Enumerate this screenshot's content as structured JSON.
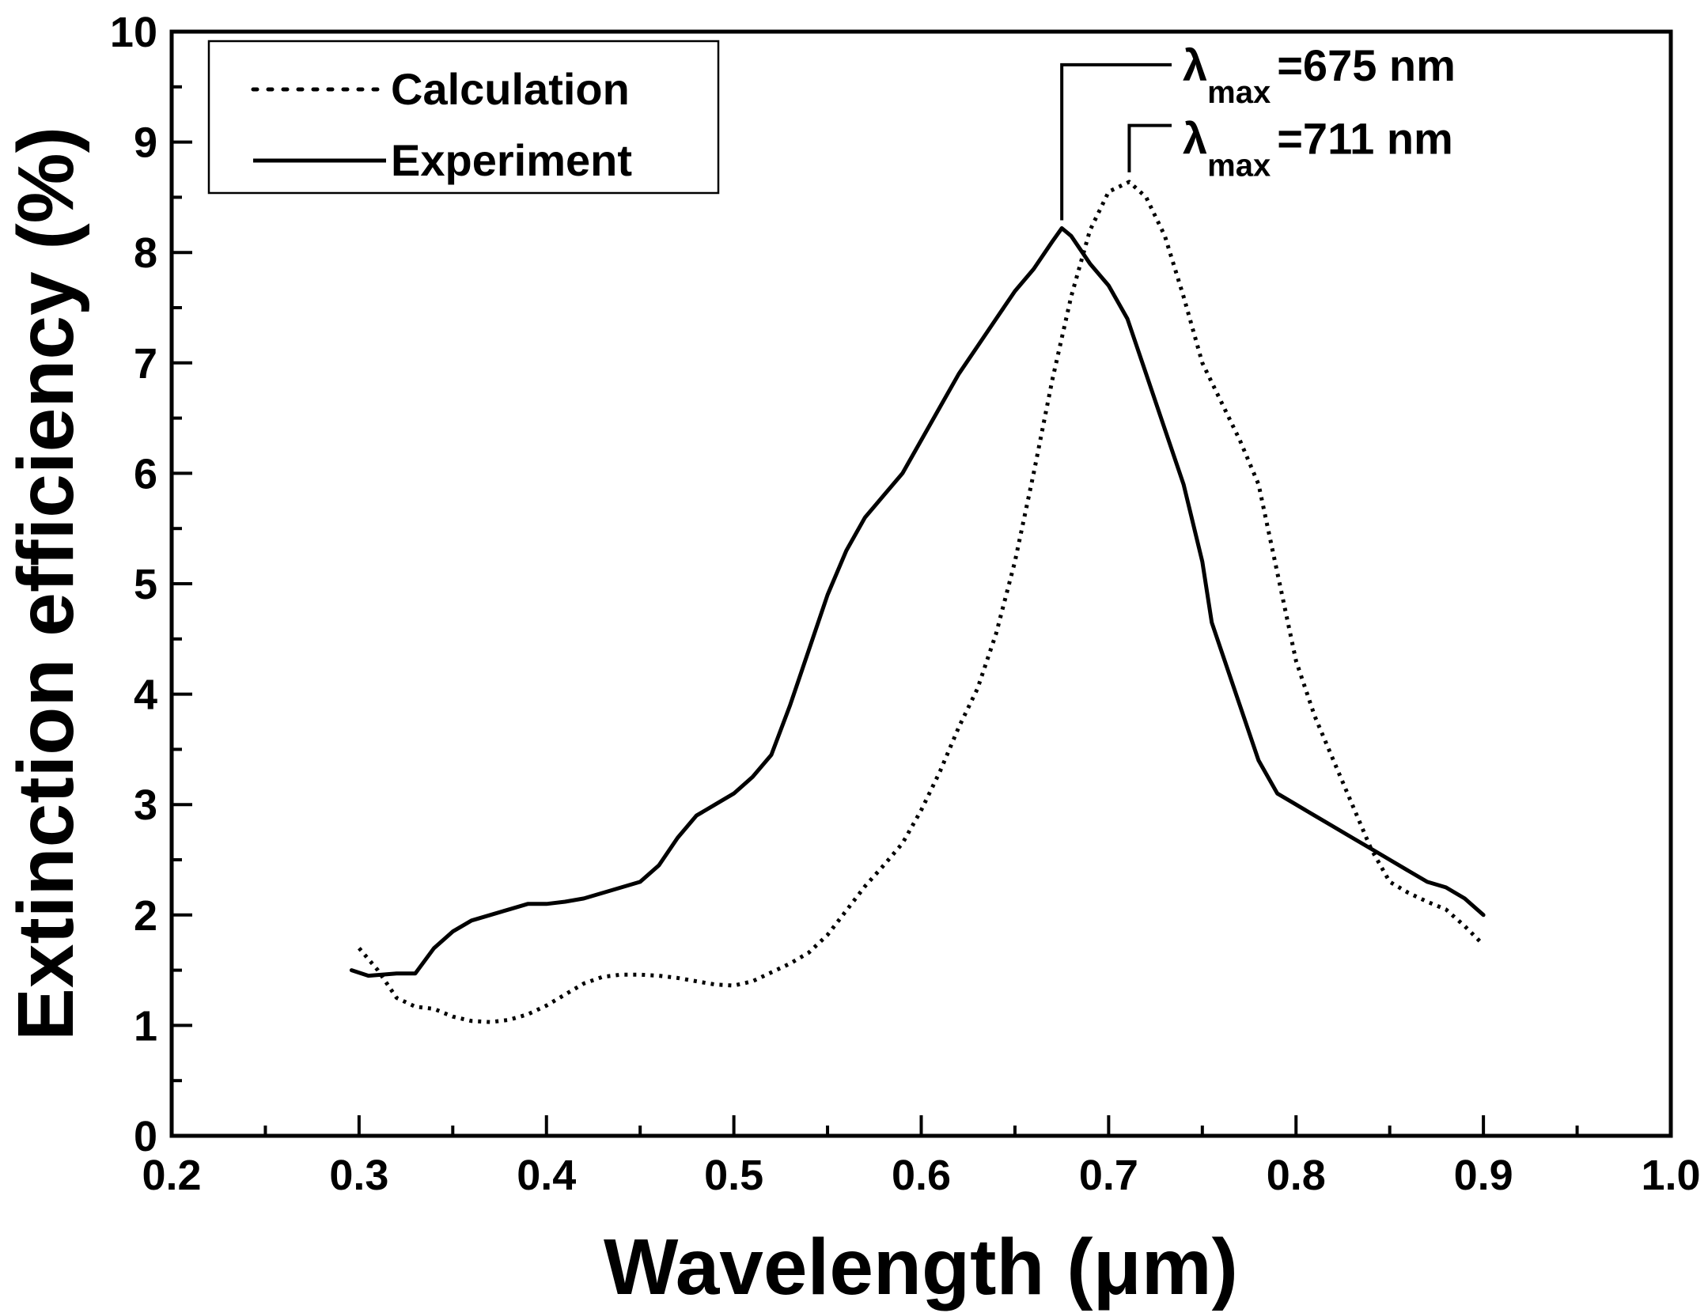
{
  "chart_data": {
    "type": "line",
    "title": "",
    "xlabel": "Wavelength (μm)",
    "ylabel": "Extinction efficiency (%)",
    "xlim": [
      0.2,
      1.0
    ],
    "ylim": [
      0,
      10
    ],
    "xticks": [
      0.2,
      0.3,
      0.4,
      0.5,
      0.6,
      0.7,
      0.8,
      0.9,
      1.0
    ],
    "xtick_labels": [
      "0.2",
      "0.3",
      "0.4",
      "0.5",
      "0.6",
      "0.7",
      "0.8",
      "0.9",
      "1.0"
    ],
    "yticks": [
      0,
      1,
      2,
      3,
      4,
      5,
      6,
      7,
      8,
      9,
      10
    ],
    "ytick_labels": [
      "0",
      "1",
      "2",
      "3",
      "4",
      "5",
      "6",
      "7",
      "8",
      "9",
      "10"
    ],
    "grid": false,
    "legend_position": "top-left",
    "series": [
      {
        "name": "Calculation",
        "style": "dotted",
        "x": [
          0.3,
          0.31,
          0.32,
          0.33,
          0.34,
          0.35,
          0.36,
          0.37,
          0.38,
          0.39,
          0.4,
          0.41,
          0.42,
          0.43,
          0.44,
          0.45,
          0.46,
          0.47,
          0.48,
          0.49,
          0.5,
          0.51,
          0.52,
          0.53,
          0.54,
          0.55,
          0.56,
          0.57,
          0.58,
          0.59,
          0.6,
          0.61,
          0.62,
          0.63,
          0.64,
          0.65,
          0.66,
          0.67,
          0.68,
          0.69,
          0.7,
          0.711,
          0.72,
          0.73,
          0.74,
          0.75,
          0.76,
          0.77,
          0.78,
          0.79,
          0.8,
          0.81,
          0.82,
          0.83,
          0.84,
          0.85,
          0.86,
          0.87,
          0.88,
          0.89,
          0.9
        ],
        "y": [
          1.7,
          1.5,
          1.25,
          1.17,
          1.15,
          1.08,
          1.04,
          1.03,
          1.05,
          1.1,
          1.18,
          1.28,
          1.38,
          1.44,
          1.46,
          1.46,
          1.45,
          1.43,
          1.4,
          1.37,
          1.36,
          1.4,
          1.48,
          1.56,
          1.66,
          1.82,
          2.04,
          2.26,
          2.45,
          2.65,
          2.95,
          3.3,
          3.7,
          4.05,
          4.55,
          5.2,
          6.0,
          6.85,
          7.6,
          8.2,
          8.55,
          8.64,
          8.5,
          8.15,
          7.6,
          7.0,
          6.65,
          6.3,
          5.9,
          5.1,
          4.3,
          3.8,
          3.4,
          3.0,
          2.6,
          2.3,
          2.2,
          2.12,
          2.05,
          1.9,
          1.73
        ]
      },
      {
        "name": "Experiment",
        "style": "solid",
        "x": [
          0.296,
          0.305,
          0.32,
          0.33,
          0.34,
          0.35,
          0.36,
          0.37,
          0.38,
          0.39,
          0.4,
          0.41,
          0.42,
          0.43,
          0.44,
          0.45,
          0.46,
          0.47,
          0.48,
          0.49,
          0.5,
          0.51,
          0.52,
          0.53,
          0.54,
          0.55,
          0.56,
          0.57,
          0.58,
          0.59,
          0.6,
          0.61,
          0.62,
          0.63,
          0.64,
          0.65,
          0.66,
          0.67,
          0.675,
          0.68,
          0.69,
          0.7,
          0.71,
          0.72,
          0.73,
          0.74,
          0.75,
          0.755,
          0.76,
          0.77,
          0.78,
          0.79,
          0.8,
          0.81,
          0.82,
          0.83,
          0.84,
          0.85,
          0.86,
          0.87,
          0.88,
          0.89,
          0.9
        ],
        "y": [
          1.5,
          1.45,
          1.47,
          1.47,
          1.7,
          1.85,
          1.95,
          2.0,
          2.05,
          2.1,
          2.1,
          2.12,
          2.15,
          2.2,
          2.25,
          2.3,
          2.45,
          2.7,
          2.9,
          3.0,
          3.1,
          3.25,
          3.45,
          3.9,
          4.4,
          4.9,
          5.3,
          5.6,
          5.8,
          6.0,
          6.3,
          6.6,
          6.9,
          7.15,
          7.4,
          7.65,
          7.85,
          8.1,
          8.22,
          8.15,
          7.9,
          7.7,
          7.4,
          6.9,
          6.4,
          5.9,
          5.2,
          4.65,
          4.4,
          3.9,
          3.4,
          3.1,
          3.0,
          2.9,
          2.8,
          2.7,
          2.6,
          2.5,
          2.4,
          2.3,
          2.25,
          2.15,
          2.0
        ]
      }
    ],
    "annotations": [
      {
        "symbol": "λ",
        "subscript": "max",
        "text": "=675 nm",
        "x": 0.675,
        "y": 8.22,
        "series": "Experiment"
      },
      {
        "symbol": "λ",
        "subscript": "max",
        "text": "=711 nm",
        "x": 0.711,
        "y": 8.64,
        "series": "Calculation"
      }
    ]
  }
}
